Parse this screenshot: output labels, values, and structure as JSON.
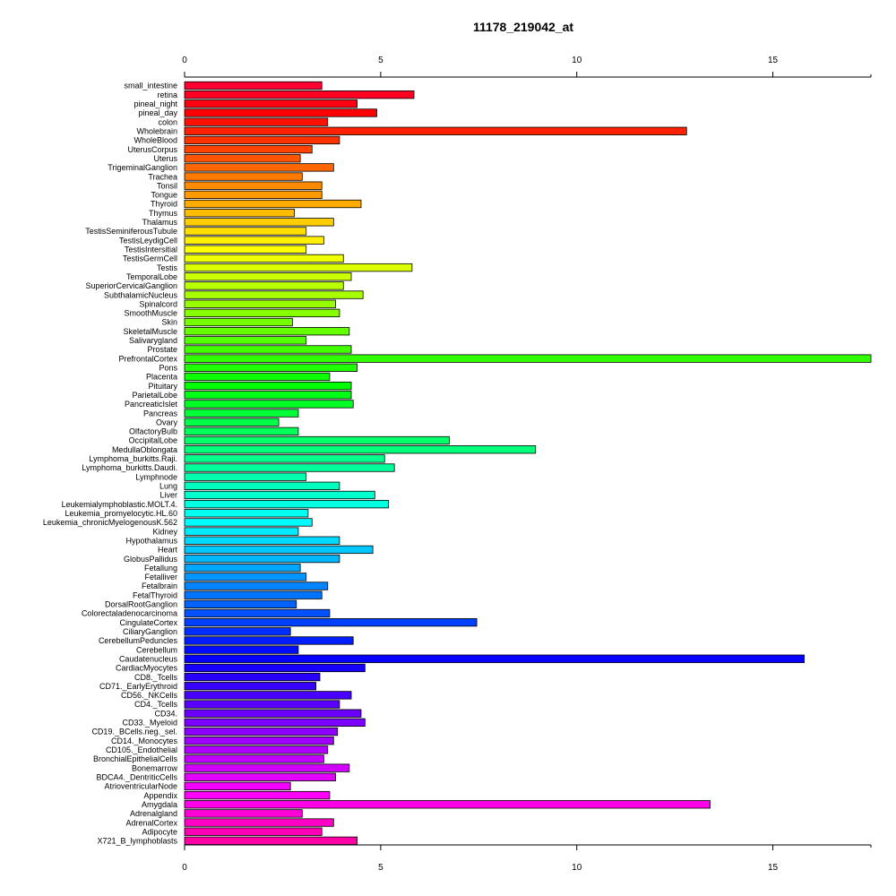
{
  "chart_data": {
    "type": "bar",
    "orientation": "horizontal",
    "title": "11178_219042_at",
    "xlabel": "",
    "ylabel": "",
    "xlim": [
      0,
      17.5
    ],
    "x_ticks": [
      0,
      5,
      10,
      15
    ],
    "x_tick_labels": [
      "0",
      "5",
      "10",
      "15"
    ],
    "axes": [
      "top",
      "bottom"
    ],
    "grid": false,
    "legend": "none",
    "color_scheme": "rainbow",
    "categories": [
      "small_intestine",
      "retina",
      "pineal_night",
      "pineal_day",
      "colon",
      "Wholebrain",
      "WholeBlood",
      "UterusCorpus",
      "Uterus",
      "TrigeminalGanglion",
      "Trachea",
      "Tonsil",
      "Tongue",
      "Thyroid",
      "Thymus",
      "Thalamus",
      "TestisSeminiferousTubule",
      "TestisLeydigCell",
      "TestisIntersitial",
      "TestisGermCell",
      "Testis",
      "TemporalLobe",
      "SuperiorCervicalGanglion",
      "SubthalamicNucleus",
      "Spinalcord",
      "SmoothMuscle",
      "Skin",
      "SkeletalMuscle",
      "Salivarygland",
      "Prostate",
      "PrefrontalCortex",
      "Pons",
      "Placenta",
      "Pituitary",
      "ParietalLobe",
      "PancreaticIslet",
      "Pancreas",
      "Ovary",
      "OlfactoryBulb",
      "OccipitalLobe",
      "MedullaOblongata",
      "Lymphoma_burkitts.Raji.",
      "Lymphoma_burkitts.Daudi.",
      "Lymphnode",
      "Lung",
      "Liver",
      "Leukemialymphoblastic.MOLT.4.",
      "Leukemia_promyelocytic.HL.60",
      "Leukemia_chronicMyelogenousK.562",
      "Kidney",
      "Hypothalamus",
      "Heart",
      "GlobusPallidus",
      "Fetallung",
      "Fetalliver",
      "Fetalbrain",
      "FetalThyroid",
      "DorsalRootGanglion",
      "Colorectaladenocarcinoma",
      "CingulateCortex",
      "CiliaryGanglion",
      "CerebellumPeduncles",
      "Cerebellum",
      "Caudatenucleus",
      "CardiacMyocytes",
      "CD8._Tcells",
      "CD71._EarlyErythroid",
      "CD56._NKCells",
      "CD4._Tcells",
      "CD34.",
      "CD33._Myeloid",
      "CD19._BCells.neg._sel.",
      "CD14._Monocytes",
      "CD105._Endothelial",
      "BronchialEpithelialCells",
      "Bonemarrow",
      "BDCA4._DentriticCells",
      "AtrioventricularNode",
      "Appendix",
      "Amygdala",
      "Adrenalgland",
      "AdrenalCortex",
      "Adipocyte",
      "X721_B_lymphoblasts"
    ],
    "values": [
      3.5,
      5.85,
      4.4,
      4.9,
      3.65,
      12.8,
      3.95,
      3.25,
      2.95,
      3.8,
      3.0,
      3.5,
      3.5,
      4.5,
      2.8,
      3.8,
      3.1,
      3.55,
      3.1,
      4.05,
      5.8,
      4.25,
      4.05,
      4.55,
      3.85,
      3.95,
      2.75,
      4.2,
      3.1,
      4.25,
      17.5,
      4.4,
      3.7,
      4.25,
      4.25,
      4.3,
      2.9,
      2.4,
      2.9,
      6.75,
      8.95,
      5.1,
      5.35,
      3.1,
      3.95,
      4.85,
      5.2,
      3.15,
      3.25,
      2.9,
      3.95,
      4.8,
      3.95,
      2.95,
      3.1,
      3.65,
      3.5,
      2.85,
      3.7,
      7.45,
      2.7,
      4.3,
      2.9,
      15.8,
      4.6,
      3.45,
      3.35,
      4.25,
      3.95,
      4.5,
      4.6,
      3.9,
      3.8,
      3.65,
      3.55,
      4.2,
      3.85,
      2.7,
      3.7,
      13.4,
      3.0,
      3.8,
      3.5,
      4.4
    ]
  }
}
